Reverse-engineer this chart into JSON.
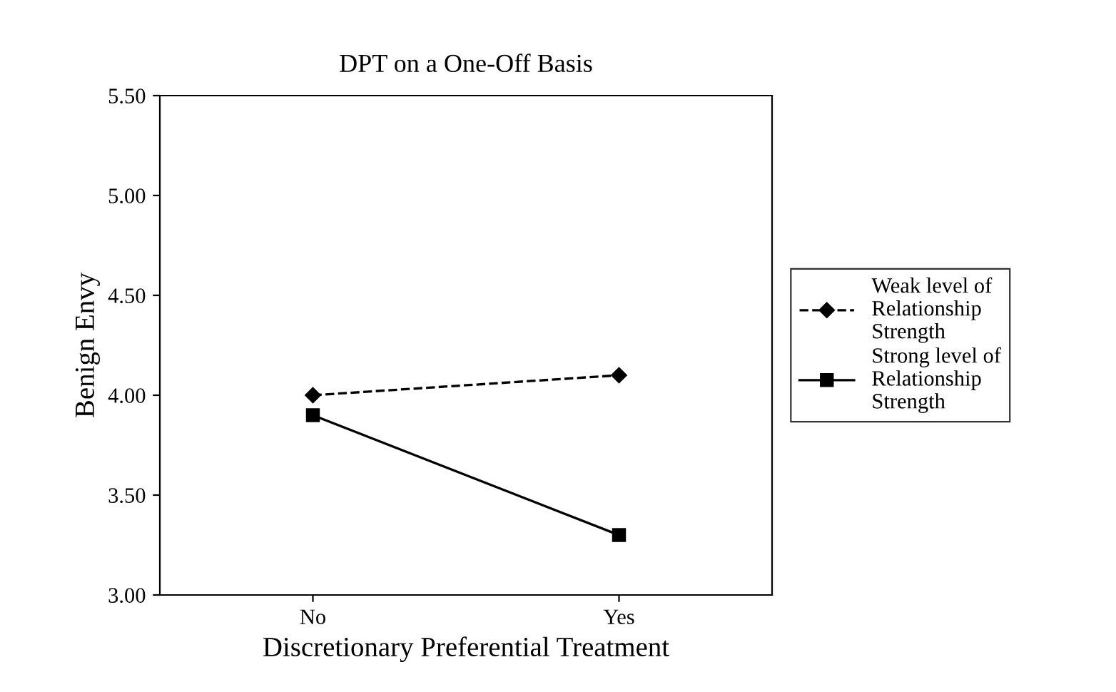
{
  "chart_data": {
    "type": "line",
    "title": "DPT on a One-Off Basis",
    "xlabel": "Discretionary Preferential Treatment",
    "ylabel": "Benign Envy",
    "categories": [
      "No",
      "Yes"
    ],
    "series": [
      {
        "name": "Weak level of\nRelationship\nStrength",
        "color": "#000000",
        "values": [
          4.0,
          4.1
        ],
        "marker": "diamond",
        "line_style": "dashed"
      },
      {
        "name": "Strong level of\nRelationship\nStrength",
        "color": "#000000",
        "values": [
          3.9,
          3.3
        ],
        "marker": "square",
        "line_style": "solid"
      }
    ],
    "ylim": [
      3.0,
      5.5
    ],
    "yticks": [
      {
        "value": 3.0,
        "label": "3.00"
      },
      {
        "value": 3.5,
        "label": "3.50"
      },
      {
        "value": 4.0,
        "label": "4.00"
      },
      {
        "value": 4.5,
        "label": "4.50"
      },
      {
        "value": 5.0,
        "label": "5.00"
      },
      {
        "value": 5.5,
        "label": "5.50"
      }
    ],
    "grid": false,
    "legend": "right"
  }
}
